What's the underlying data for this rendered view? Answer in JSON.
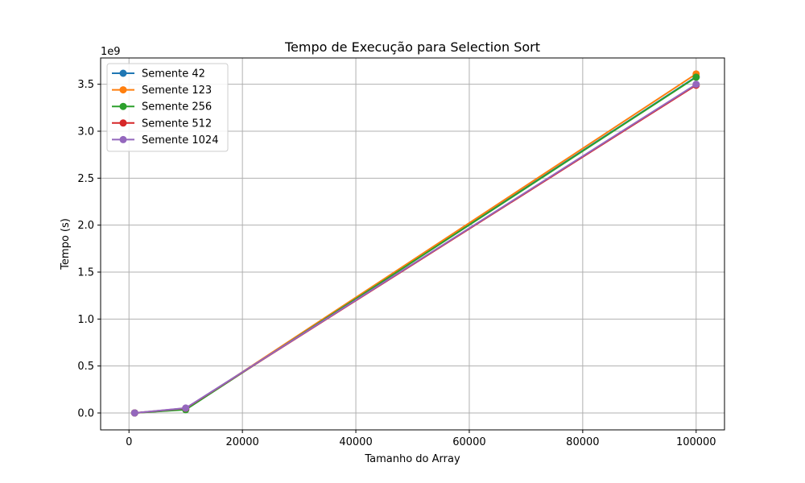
{
  "chart_data": {
    "type": "line",
    "title": "Tempo de Execução para  Selection Sort",
    "xlabel": "Tamanho do Array",
    "ylabel": "Tempo (s)",
    "y_offset_label": "1e9",
    "xlim": [
      -5000,
      105000
    ],
    "ylim": [
      -180000000,
      3780000000
    ],
    "x_ticks": [
      0,
      20000,
      40000,
      60000,
      80000,
      100000
    ],
    "x_tick_labels": [
      "0",
      "20000",
      "40000",
      "60000",
      "80000",
      "100000"
    ],
    "y_ticks": [
      0,
      500000000,
      1000000000,
      1500000000,
      2000000000,
      2500000000,
      3000000000,
      3500000000
    ],
    "y_tick_labels": [
      "0.0",
      "0.5",
      "1.0",
      "1.5",
      "2.0",
      "2.5",
      "3.0",
      "3.5"
    ],
    "grid": true,
    "legend_position": "top-left",
    "x": [
      1000,
      10000,
      100000
    ],
    "series": [
      {
        "name": "Semente 42",
        "color": "#1f77b4",
        "values": [
          400000,
          40000000,
          3580000000
        ]
      },
      {
        "name": "Semente 123",
        "color": "#ff7f0e",
        "values": [
          400000,
          40000000,
          3610000000
        ]
      },
      {
        "name": "Semente 256",
        "color": "#2ca02c",
        "values": [
          400000,
          35000000,
          3575000000
        ]
      },
      {
        "name": "Semente 512",
        "color": "#d62728",
        "values": [
          400000,
          50000000,
          3490000000
        ]
      },
      {
        "name": "Semente 1024",
        "color": "#9467bd",
        "values": [
          400000,
          52000000,
          3500000000
        ]
      }
    ]
  }
}
